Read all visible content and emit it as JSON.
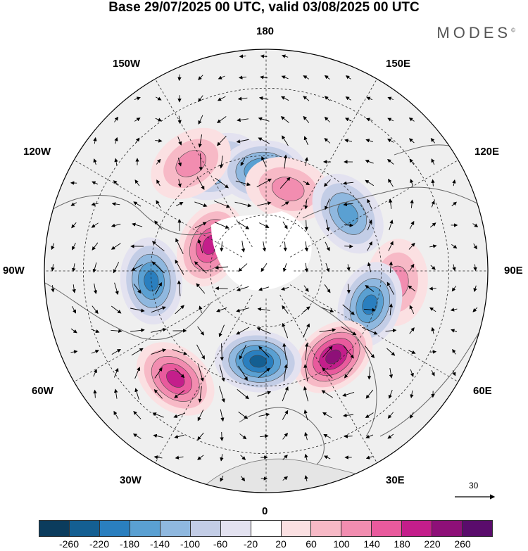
{
  "title": "Base 29/07/2025 00 UTC, valid 03/08/2025 00 UTC",
  "logo": "MODES",
  "logo_mark": "©",
  "longitude_labels": {
    "top": "180",
    "bottom": "0",
    "left": "90W",
    "right": "90E",
    "nw1": "150W",
    "nw2": "120W",
    "ne1": "150E",
    "ne2": "120E",
    "sw1": "60W",
    "sw2": "30W",
    "se1": "60E",
    "se2": "30E"
  },
  "reference_vector": {
    "label": "30"
  },
  "colorbar": {
    "colors": [
      "#0b3c5d",
      "#145f92",
      "#2a7fbf",
      "#5aa0d2",
      "#8fb8df",
      "#c3cde6",
      "#e3e2f0",
      "#ffffff",
      "#fbe0e2",
      "#f7b9c6",
      "#f28db0",
      "#e95a9d",
      "#c41e8b",
      "#8e1078",
      "#5a0c6c"
    ],
    "ticks": [
      "-260",
      "-220",
      "-180",
      "-140",
      "-100",
      "-60",
      "-20",
      "20",
      "60",
      "100",
      "140",
      "180",
      "220",
      "260"
    ]
  },
  "anomaly_centers": [
    {
      "name": "pacific-low-1",
      "lon": -155,
      "lat": 50,
      "value": -110
    },
    {
      "name": "bering-low",
      "lon": -178,
      "lat": 55,
      "value": -150
    },
    {
      "name": "siberia-high",
      "lon": 165,
      "lat": 60,
      "value": 90
    },
    {
      "name": "east-siberia-low",
      "lon": 125,
      "lat": 55,
      "value": -100
    },
    {
      "name": "central-asia-high",
      "lon": 85,
      "lat": 45,
      "value": 80
    },
    {
      "name": "ural-low",
      "lon": 72,
      "lat": 52,
      "value": -150
    },
    {
      "name": "europe-high",
      "lon": 38,
      "lat": 52,
      "value": 190
    },
    {
      "name": "north-atlantic-low",
      "lon": -5,
      "lat": 58,
      "value": -200
    },
    {
      "name": "mid-atlantic-high",
      "lon": -40,
      "lat": 42,
      "value": 150
    },
    {
      "name": "canada-low",
      "lon": -85,
      "lat": 50,
      "value": -160
    },
    {
      "name": "arctic-canada-high",
      "lon": -115,
      "lat": 68,
      "value": 140
    },
    {
      "name": "gulf-alaska-high",
      "lon": -145,
      "lat": 45,
      "value": 80
    }
  ]
}
